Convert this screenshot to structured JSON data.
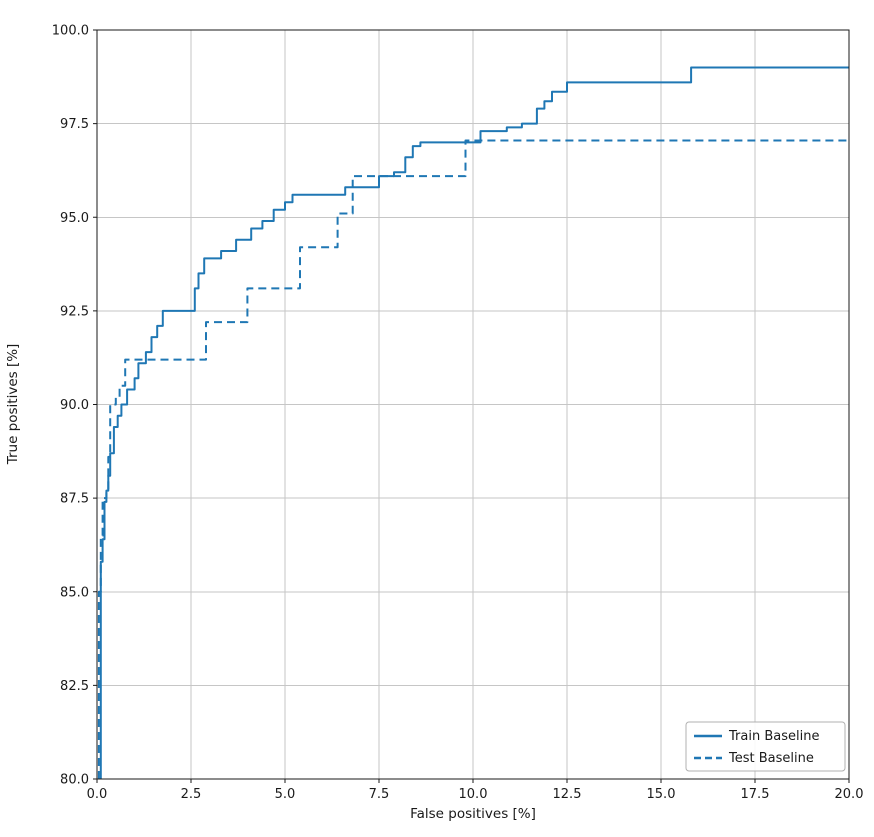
{
  "figure": {
    "background": "#ffffff"
  },
  "chart_data": {
    "type": "line",
    "title": "",
    "xlabel": "False positives [%]",
    "ylabel": "True positives [%]",
    "xlim": [
      0,
      20
    ],
    "ylim": [
      80,
      100
    ],
    "grid": true,
    "grid_color": "#c6c6c6",
    "frame_color": "#1a1a1a",
    "legend": {
      "position": "lower right"
    },
    "xticks": {
      "values": [
        0,
        2.5,
        5,
        7.5,
        10,
        12.5,
        15,
        17.5,
        20
      ],
      "labels": [
        "0.0",
        "2.5",
        "5.0",
        "7.5",
        "10.0",
        "12.5",
        "15.0",
        "17.5",
        "20.0"
      ]
    },
    "yticks": {
      "values": [
        80,
        82.5,
        85,
        87.5,
        90,
        92.5,
        95,
        97.5,
        100
      ],
      "labels": [
        "80.0",
        "82.5",
        "85.0",
        "87.5",
        "90.0",
        "92.5",
        "95.0",
        "97.5",
        "100.0"
      ]
    },
    "series": [
      {
        "name": "Train Baseline",
        "style": "solid",
        "color": "#1f77b4",
        "points": [
          [
            0.1,
            80.0
          ],
          [
            0.1,
            85.8
          ],
          [
            0.15,
            85.8
          ],
          [
            0.15,
            86.4
          ],
          [
            0.2,
            86.4
          ],
          [
            0.2,
            87.4
          ],
          [
            0.25,
            87.4
          ],
          [
            0.25,
            87.7
          ],
          [
            0.3,
            87.7
          ],
          [
            0.3,
            88.1
          ],
          [
            0.35,
            88.1
          ],
          [
            0.35,
            88.7
          ],
          [
            0.45,
            88.7
          ],
          [
            0.45,
            89.4
          ],
          [
            0.55,
            89.4
          ],
          [
            0.55,
            89.7
          ],
          [
            0.65,
            89.7
          ],
          [
            0.65,
            90.0
          ],
          [
            0.8,
            90.0
          ],
          [
            0.8,
            90.4
          ],
          [
            1.0,
            90.4
          ],
          [
            1.0,
            90.7
          ],
          [
            1.1,
            90.7
          ],
          [
            1.1,
            91.1
          ],
          [
            1.3,
            91.1
          ],
          [
            1.3,
            91.4
          ],
          [
            1.45,
            91.4
          ],
          [
            1.45,
            91.8
          ],
          [
            1.6,
            91.8
          ],
          [
            1.6,
            92.1
          ],
          [
            1.75,
            92.1
          ],
          [
            1.75,
            92.5
          ],
          [
            2.6,
            92.5
          ],
          [
            2.6,
            93.1
          ],
          [
            2.7,
            93.1
          ],
          [
            2.7,
            93.5
          ],
          [
            2.85,
            93.5
          ],
          [
            2.85,
            93.9
          ],
          [
            3.3,
            93.9
          ],
          [
            3.3,
            94.1
          ],
          [
            3.7,
            94.1
          ],
          [
            3.7,
            94.4
          ],
          [
            4.1,
            94.4
          ],
          [
            4.1,
            94.7
          ],
          [
            4.4,
            94.7
          ],
          [
            4.4,
            94.9
          ],
          [
            4.7,
            94.9
          ],
          [
            4.7,
            95.2
          ],
          [
            5.0,
            95.2
          ],
          [
            5.0,
            95.4
          ],
          [
            5.2,
            95.4
          ],
          [
            5.2,
            95.6
          ],
          [
            6.6,
            95.6
          ],
          [
            6.6,
            95.8
          ],
          [
            7.5,
            95.8
          ],
          [
            7.5,
            96.1
          ],
          [
            7.9,
            96.1
          ],
          [
            7.9,
            96.2
          ],
          [
            8.2,
            96.2
          ],
          [
            8.2,
            96.6
          ],
          [
            8.4,
            96.6
          ],
          [
            8.4,
            96.9
          ],
          [
            8.6,
            96.9
          ],
          [
            8.6,
            97.0
          ],
          [
            10.2,
            97.0
          ],
          [
            10.2,
            97.3
          ],
          [
            10.9,
            97.3
          ],
          [
            10.9,
            97.4
          ],
          [
            11.3,
            97.4
          ],
          [
            11.3,
            97.5
          ],
          [
            11.7,
            97.5
          ],
          [
            11.7,
            97.9
          ],
          [
            11.9,
            97.9
          ],
          [
            11.9,
            98.1
          ],
          [
            12.1,
            98.1
          ],
          [
            12.1,
            98.35
          ],
          [
            12.5,
            98.35
          ],
          [
            12.5,
            98.6
          ],
          [
            15.8,
            98.6
          ],
          [
            15.8,
            99.0
          ],
          [
            20.0,
            99.0
          ]
        ]
      },
      {
        "name": "Test Baseline",
        "style": "dashed",
        "color": "#1f77b4",
        "points": [
          [
            0.05,
            80.0
          ],
          [
            0.05,
            85.0
          ],
          [
            0.1,
            85.0
          ],
          [
            0.1,
            86.5
          ],
          [
            0.15,
            86.5
          ],
          [
            0.15,
            87.5
          ],
          [
            0.25,
            87.5
          ],
          [
            0.25,
            87.7
          ],
          [
            0.3,
            87.7
          ],
          [
            0.3,
            88.6
          ],
          [
            0.35,
            88.6
          ],
          [
            0.35,
            90.0
          ],
          [
            0.5,
            90.0
          ],
          [
            0.5,
            90.2
          ],
          [
            0.6,
            90.2
          ],
          [
            0.6,
            90.5
          ],
          [
            0.75,
            90.5
          ],
          [
            0.75,
            91.2
          ],
          [
            2.9,
            91.2
          ],
          [
            2.9,
            92.2
          ],
          [
            4.0,
            92.2
          ],
          [
            4.0,
            93.1
          ],
          [
            5.4,
            93.1
          ],
          [
            5.4,
            94.2
          ],
          [
            6.4,
            94.2
          ],
          [
            6.4,
            95.1
          ],
          [
            6.8,
            95.1
          ],
          [
            6.8,
            96.1
          ],
          [
            9.8,
            96.1
          ],
          [
            9.8,
            97.05
          ],
          [
            20.0,
            97.05
          ]
        ]
      }
    ]
  }
}
